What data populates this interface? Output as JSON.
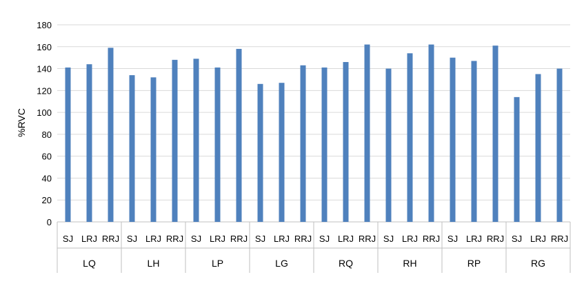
{
  "chart_data": {
    "type": "bar",
    "title": "",
    "ylabel": "%RVC",
    "xlabel": "",
    "ylim": [
      0,
      180
    ],
    "yticks": [
      0,
      20,
      40,
      60,
      80,
      100,
      120,
      140,
      160,
      180
    ],
    "grid": true,
    "legend": "none",
    "bar_color": "#4f81bd",
    "groups": [
      {
        "label": "LQ",
        "categories": [
          "SJ",
          "LRJ",
          "RRJ"
        ],
        "values": [
          141,
          144,
          159
        ]
      },
      {
        "label": "LH",
        "categories": [
          "SJ",
          "LRJ",
          "RRJ"
        ],
        "values": [
          134,
          132,
          148
        ]
      },
      {
        "label": "LP",
        "categories": [
          "SJ",
          "LRJ",
          "RRJ"
        ],
        "values": [
          149,
          141,
          158
        ]
      },
      {
        "label": "LG",
        "categories": [
          "SJ",
          "LRJ",
          "RRJ"
        ],
        "values": [
          126,
          127,
          143
        ]
      },
      {
        "label": "RQ",
        "categories": [
          "SJ",
          "LRJ",
          "RRJ"
        ],
        "values": [
          141,
          146,
          162
        ]
      },
      {
        "label": "RH",
        "categories": [
          "SJ",
          "LRJ",
          "RRJ"
        ],
        "values": [
          140,
          154,
          162
        ]
      },
      {
        "label": "RP",
        "categories": [
          "SJ",
          "LRJ",
          "RRJ"
        ],
        "values": [
          150,
          147,
          161
        ]
      },
      {
        "label": "RG",
        "categories": [
          "SJ",
          "LRJ",
          "RRJ"
        ],
        "values": [
          114,
          135,
          140
        ]
      }
    ]
  }
}
